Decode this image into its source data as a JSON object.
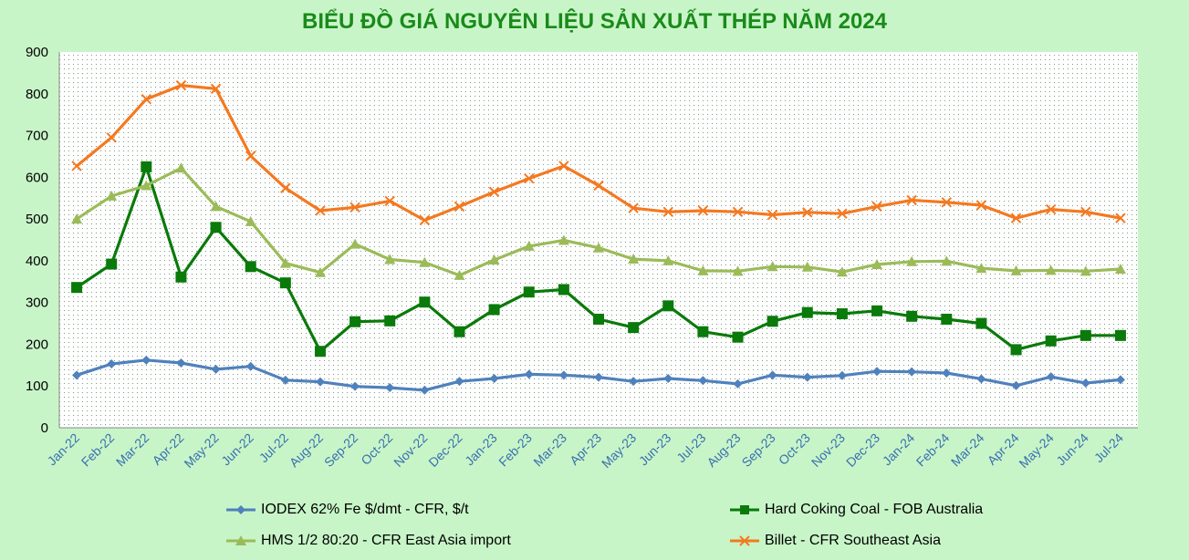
{
  "chart_data": {
    "type": "line",
    "title": "BIỂU ĐỒ GIÁ NGUYÊN LIỆU SẢN XUẤT THÉP NĂM 2024",
    "xlabel": "",
    "ylabel": "",
    "ylim": [
      0,
      900
    ],
    "yticks": [
      "0",
      "100",
      "200",
      "300",
      "400",
      "500",
      "600",
      "700",
      "800",
      "900"
    ],
    "grid": "dotted background",
    "legend_position": "bottom",
    "categories": [
      "Jan-22",
      "Feb-22",
      "Mar-22",
      "Apr-22",
      "May-22",
      "Jun-22",
      "Jul-22",
      "Aug-22",
      "Sep-22",
      "Oct-22",
      "Nov-22",
      "Dec-22",
      "Jan-23",
      "Feb-23",
      "Mar-23",
      "Apr-23",
      "May-23",
      "Jun-23",
      "Jul-23",
      "Aug-23",
      "Sep-23",
      "Oct-23",
      "Nov-23",
      "Dec-23",
      "Jan-24",
      "Feb-24",
      "Mar-24",
      "Apr-24",
      "May-24",
      "Jun-24",
      "Jul-24"
    ],
    "series": [
      {
        "name": "IODEX 62% Fe $/dmt - CFR, $/t",
        "color": "#4f81bd",
        "marker": "diamond",
        "values": [
          126,
          153,
          162,
          155,
          140,
          147,
          114,
          110,
          99,
          96,
          90,
          111,
          118,
          128,
          126,
          121,
          111,
          118,
          113,
          105,
          126,
          121,
          125,
          135,
          134,
          131,
          117,
          101,
          122,
          107,
          115
        ]
      },
      {
        "name": "Hard Coking Coal - FOB Australia",
        "color": "#0a7a0a",
        "marker": "square",
        "values": [
          336,
          392,
          625,
          361,
          480,
          386,
          347,
          183,
          254,
          256,
          301,
          230,
          283,
          325,
          331,
          260,
          240,
          292,
          230,
          217,
          255,
          276,
          273,
          280,
          267,
          260,
          250,
          187,
          208,
          221,
          221
        ]
      },
      {
        "name": "HMS 1/2 80:20 - CFR East Asia import",
        "color": "#9bbb59",
        "marker": "triangle",
        "values": [
          500,
          555,
          580,
          622,
          530,
          494,
          394,
          372,
          440,
          403,
          396,
          365,
          402,
          435,
          449,
          431,
          404,
          400,
          376,
          375,
          386,
          385,
          373,
          391,
          398,
          399,
          382,
          376,
          377,
          375,
          380
        ]
      },
      {
        "name": "Billet - CFR Southeast Asia",
        "color": "#f47920",
        "marker": "x",
        "values": [
          627,
          695,
          787,
          820,
          812,
          651,
          574,
          520,
          528,
          543,
          497,
          530,
          565,
          597,
          627,
          580,
          526,
          517,
          520,
          517,
          510,
          516,
          513,
          530,
          545,
          540,
          533,
          502,
          523,
          517,
          502
        ]
      }
    ]
  }
}
